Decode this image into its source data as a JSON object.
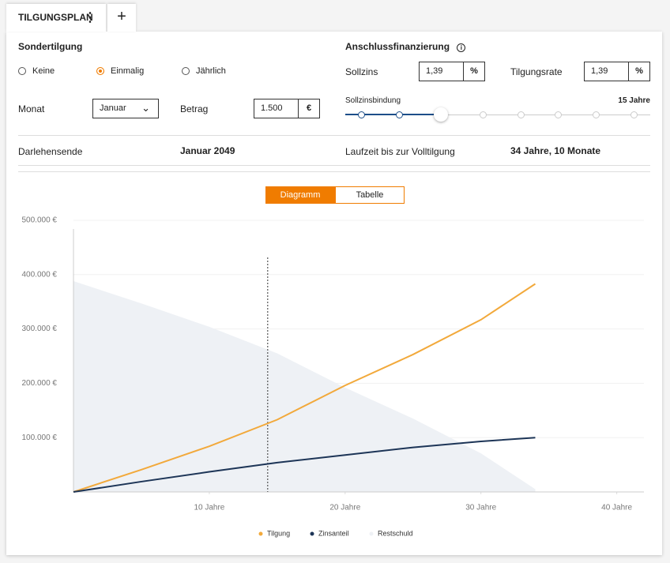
{
  "tab": {
    "title": "TILGUNGSPLAN"
  },
  "sondertilgung": {
    "title": "Sondertilgung",
    "options": [
      "Keine",
      "Einmalig",
      "Jährlich"
    ],
    "selected": 1,
    "monat_label": "Monat",
    "monat_value": "Januar",
    "betrag_label": "Betrag",
    "betrag_value": "1.500",
    "betrag_unit": "€"
  },
  "anschluss": {
    "title": "Anschlussfinanzierung",
    "sollzins_label": "Sollzins",
    "sollzins_value": "1,39",
    "sollzins_unit": "%",
    "tilgungsrate_label": "Tilgungsrate",
    "tilgungsrate_value": "1,39",
    "tilgungsrate_unit": "%",
    "bindung_label": "Sollzinsbindung",
    "bindung_value": "15 Jahre"
  },
  "summary": {
    "darlehensende_label": "Darlehensende",
    "darlehensende_value": "Januar 2049",
    "laufzeit_label": "Laufzeit bis zur Volltilgung",
    "laufzeit_value": "34 Jahre, 10 Monate"
  },
  "toggle": {
    "options": [
      "Diagramm",
      "Tabelle"
    ],
    "active": 0
  },
  "chart_data": {
    "type": "line",
    "x": [
      0,
      5,
      10,
      15,
      20,
      25,
      30,
      34
    ],
    "series": [
      {
        "name": "Tilgung",
        "color": "#f2a93b",
        "values": [
          0,
          41000,
          84000,
          133000,
          196000,
          253000,
          317000,
          383000
        ]
      },
      {
        "name": "Zinsanteil",
        "color": "#1d3557",
        "values": [
          0,
          19000,
          37000,
          54000,
          68000,
          82000,
          93000,
          100000
        ]
      },
      {
        "name": "Restschuld",
        "color": "#eef1f5",
        "values": [
          388000,
          347000,
          304000,
          255000,
          192000,
          135000,
          71000,
          5000
        ],
        "area": true
      }
    ],
    "marker_x": 14.3,
    "xlim": [
      0,
      42
    ],
    "xticks": [
      {
        "value": 10,
        "label": "10 Jahre"
      },
      {
        "value": 20,
        "label": "20 Jahre"
      },
      {
        "value": 30,
        "label": "30 Jahre"
      },
      {
        "value": 40,
        "label": "40 Jahre"
      }
    ],
    "ylim": [
      0,
      500000
    ],
    "yticks": [
      {
        "value": 100000,
        "label": "100.000 €"
      },
      {
        "value": 200000,
        "label": "200.000 €"
      },
      {
        "value": 300000,
        "label": "300.000 €"
      },
      {
        "value": 400000,
        "label": "400.000 €"
      },
      {
        "value": 500000,
        "label": "500.000 €"
      }
    ],
    "grid": true
  }
}
